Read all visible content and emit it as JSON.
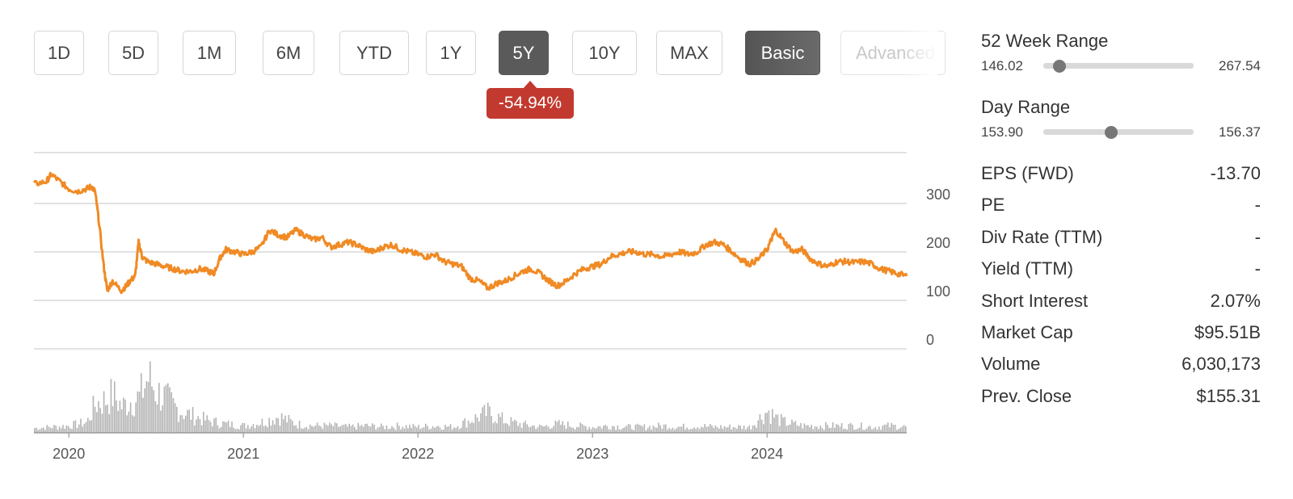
{
  "range_buttons": [
    {
      "label": "1D",
      "state": "default"
    },
    {
      "label": "5D",
      "state": "default"
    },
    {
      "label": "1M",
      "state": "default"
    },
    {
      "label": "6M",
      "state": "default"
    },
    {
      "label": "YTD",
      "state": "default"
    },
    {
      "label": "1Y",
      "state": "default"
    },
    {
      "label": "5Y",
      "state": "active"
    },
    {
      "label": "10Y",
      "state": "default"
    },
    {
      "label": "MAX",
      "state": "default"
    }
  ],
  "view_modes": [
    {
      "label": "Basic",
      "state": "active"
    },
    {
      "label": "Advanced",
      "state": "disabled"
    }
  ],
  "change_badge": {
    "text": "-54.94%",
    "color": "#c23a2f"
  },
  "colors": {
    "price_line": "#f08a24",
    "volume_bars": "#b3b3b3",
    "gridline": "#d9d9d9"
  },
  "stats": {
    "week52": {
      "label": "52 Week Range",
      "low": "146.02",
      "high": "267.54",
      "position": 0.11
    },
    "day": {
      "label": "Day Range",
      "low": "153.90",
      "high": "156.37",
      "position": 0.45
    },
    "rows": [
      {
        "label": "EPS (FWD)",
        "value": "-13.70"
      },
      {
        "label": "PE",
        "value": "-"
      },
      {
        "label": "Div Rate (TTM)",
        "value": "-"
      },
      {
        "label": "Yield (TTM)",
        "value": "-"
      },
      {
        "label": "Short Interest",
        "value": "2.07%"
      },
      {
        "label": "Market Cap",
        "value": "$95.51B"
      },
      {
        "label": "Volume",
        "value": "6,030,173"
      },
      {
        "label": "Prev. Close",
        "value": "$155.31"
      }
    ]
  },
  "chart_data": {
    "type": "line",
    "title": "",
    "xlabel": "",
    "ylabel": "",
    "x_ticks": [
      "2020",
      "2021",
      "2022",
      "2023",
      "2024"
    ],
    "y_ticks": [
      0,
      100,
      200,
      300
    ],
    "ylim": [
      0,
      400
    ],
    "xlim": [
      2019.8,
      2024.8
    ],
    "grid": true,
    "series": [
      {
        "x": [
          2019.8,
          2019.87,
          2019.9,
          2019.95,
          2020.0,
          2020.05,
          2020.1,
          2020.13,
          2020.15,
          2020.17,
          2020.2,
          2020.22,
          2020.25,
          2020.3,
          2020.33,
          2020.35,
          2020.38,
          2020.4,
          2020.42,
          2020.45,
          2020.5,
          2020.55,
          2020.6,
          2020.65,
          2020.7,
          2020.75,
          2020.8,
          2020.83,
          2020.87,
          2020.9,
          2020.95,
          2021.0,
          2021.05,
          2021.1,
          2021.15,
          2021.2,
          2021.25,
          2021.3,
          2021.35,
          2021.4,
          2021.45,
          2021.5,
          2021.55,
          2021.6,
          2021.65,
          2021.7,
          2021.75,
          2021.8,
          2021.85,
          2021.9,
          2021.95,
          2022.0,
          2022.05,
          2022.1,
          2022.15,
          2022.2,
          2022.25,
          2022.3,
          2022.35,
          2022.4,
          2022.45,
          2022.5,
          2022.55,
          2022.6,
          2022.65,
          2022.7,
          2022.75,
          2022.8,
          2022.85,
          2022.9,
          2022.95,
          2023.0,
          2023.05,
          2023.1,
          2023.15,
          2023.2,
          2023.25,
          2023.3,
          2023.35,
          2023.4,
          2023.45,
          2023.5,
          2023.55,
          2023.6,
          2023.65,
          2023.7,
          2023.75,
          2023.8,
          2023.85,
          2023.9,
          2023.95,
          2024.0,
          2024.03,
          2024.05,
          2024.1,
          2024.15,
          2024.2,
          2024.25,
          2024.3,
          2024.35,
          2024.4,
          2024.45,
          2024.5,
          2024.55,
          2024.6,
          2024.65,
          2024.7,
          2024.75,
          2024.8
        ],
        "y": [
          340,
          345,
          360,
          345,
          330,
          325,
          330,
          335,
          325,
          270,
          170,
          120,
          140,
          120,
          130,
          140,
          150,
          220,
          190,
          180,
          175,
          170,
          165,
          160,
          160,
          165,
          160,
          155,
          190,
          205,
          200,
          195,
          200,
          210,
          245,
          235,
          230,
          245,
          235,
          225,
          230,
          210,
          215,
          220,
          215,
          205,
          200,
          210,
          215,
          205,
          200,
          195,
          190,
          195,
          180,
          175,
          170,
          145,
          140,
          125,
          135,
          140,
          150,
          160,
          165,
          155,
          140,
          130,
          140,
          155,
          165,
          170,
          175,
          190,
          195,
          200,
          200,
          195,
          195,
          190,
          195,
          200,
          195,
          200,
          215,
          220,
          215,
          200,
          185,
          175,
          185,
          205,
          230,
          245,
          220,
          200,
          205,
          185,
          175,
          170,
          180,
          180,
          178,
          180,
          175,
          165,
          160,
          155,
          150
        ]
      }
    ],
    "volume": {
      "x": [
        2019.8,
        2019.9,
        2020.0,
        2020.1,
        2020.15,
        2020.2,
        2020.25,
        2020.3,
        2020.35,
        2020.4,
        2020.45,
        2020.5,
        2020.55,
        2020.6,
        2020.65,
        2020.7,
        2020.8,
        2020.9,
        2021.0,
        2021.1,
        2021.2,
        2021.3,
        2021.4,
        2021.5,
        2021.6,
        2021.7,
        2021.8,
        2021.9,
        2022.0,
        2022.1,
        2022.2,
        2022.3,
        2022.4,
        2022.5,
        2022.6,
        2022.7,
        2022.8,
        2022.9,
        2023.0,
        2023.1,
        2023.2,
        2023.3,
        2023.4,
        2023.5,
        2023.6,
        2023.7,
        2023.8,
        2023.9,
        2024.0,
        2024.05,
        2024.1,
        2024.2,
        2024.3,
        2024.4,
        2024.5,
        2024.6,
        2024.7,
        2024.8
      ],
      "y": [
        0.08,
        0.1,
        0.12,
        0.18,
        0.5,
        0.55,
        0.65,
        0.45,
        0.55,
        0.6,
        0.95,
        0.7,
        0.6,
        0.45,
        0.35,
        0.3,
        0.2,
        0.15,
        0.12,
        0.18,
        0.28,
        0.15,
        0.12,
        0.12,
        0.1,
        0.12,
        0.1,
        0.12,
        0.1,
        0.12,
        0.1,
        0.22,
        0.35,
        0.2,
        0.14,
        0.1,
        0.15,
        0.12,
        0.1,
        0.12,
        0.1,
        0.1,
        0.12,
        0.1,
        0.12,
        0.1,
        0.1,
        0.1,
        0.38,
        0.25,
        0.18,
        0.12,
        0.12,
        0.12,
        0.12,
        0.1,
        0.12,
        0.1
      ]
    }
  }
}
